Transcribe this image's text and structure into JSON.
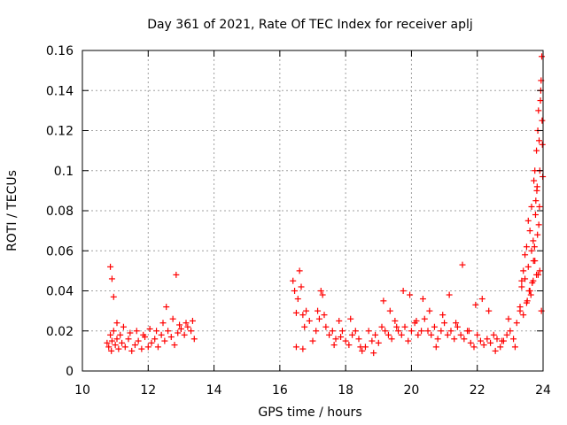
{
  "chart_data": {
    "type": "scatter",
    "title": "Day 361 of 2021, Rate Of TEC Index for receiver aplj",
    "xlabel": "GPS time / hours",
    "ylabel": "ROTI / TECUs",
    "xlim": [
      10,
      24
    ],
    "ylim": [
      0,
      0.16
    ],
    "x_ticks": [
      10,
      12,
      14,
      16,
      18,
      20,
      22,
      24
    ],
    "x_tick_labels": [
      "10",
      "12",
      "14",
      "16",
      "18",
      "20",
      "22",
      "24"
    ],
    "y_ticks": [
      0,
      0.02,
      0.04,
      0.06,
      0.08,
      0.1,
      0.12,
      0.14,
      0.16
    ],
    "y_tick_labels": [
      "0",
      "0.02",
      "0.04",
      "0.06",
      "0.08",
      "0.1",
      "0.12",
      "0.14",
      "0.16"
    ],
    "grid": true,
    "marker": "plus",
    "color": "#ff0000",
    "series": [
      {
        "name": "ROTI",
        "x": [
          10.75,
          10.8,
          10.85,
          10.88,
          10.9,
          10.95,
          11.0,
          11.05,
          11.1,
          11.15,
          11.2,
          11.3,
          11.4,
          11.5,
          11.6,
          11.7,
          11.8,
          11.9,
          12.0,
          12.1,
          12.2,
          12.3,
          12.4,
          12.5,
          12.6,
          12.7,
          12.8,
          12.9,
          13.0,
          13.1,
          13.2,
          13.3,
          13.4,
          10.85,
          10.9,
          10.95,
          11.05,
          11.25,
          11.45,
          11.65,
          11.85,
          12.05,
          12.25,
          12.45,
          12.55,
          12.75,
          12.85,
          12.95,
          13.15,
          13.35,
          16.4,
          16.45,
          16.5,
          16.55,
          16.6,
          16.65,
          16.7,
          16.75,
          16.8,
          16.9,
          17.0,
          17.1,
          17.2,
          17.25,
          17.3,
          17.4,
          17.5,
          17.6,
          17.7,
          17.8,
          17.9,
          18.0,
          18.1,
          18.2,
          18.3,
          18.4,
          18.5,
          18.6,
          18.7,
          18.8,
          18.9,
          19.0,
          19.1,
          19.2,
          19.3,
          19.4,
          19.5,
          19.6,
          19.7,
          19.8,
          19.9,
          20.0,
          20.1,
          20.2,
          20.3,
          20.4,
          20.5,
          20.6,
          20.7,
          20.8,
          20.9,
          21.0,
          21.1,
          21.2,
          21.3,
          21.4,
          21.5,
          21.6,
          21.7,
          21.8,
          21.9,
          22.0,
          22.1,
          22.2,
          22.3,
          22.4,
          22.5,
          22.6,
          22.7,
          22.8,
          22.9,
          23.0,
          23.1,
          23.2,
          23.3,
          23.4,
          23.5,
          23.6,
          23.7,
          23.8,
          23.9,
          16.5,
          16.7,
          17.15,
          17.35,
          17.65,
          17.85,
          18.15,
          18.45,
          18.85,
          19.15,
          19.35,
          19.55,
          19.75,
          19.95,
          20.15,
          20.35,
          20.55,
          20.75,
          20.95,
          21.15,
          21.35,
          21.55,
          21.75,
          21.95,
          22.15,
          22.35,
          22.55,
          22.75,
          22.95,
          23.15,
          23.35,
          23.45,
          23.55,
          23.65,
          23.75,
          23.85,
          23.95,
          23.3,
          23.35,
          23.4,
          23.45,
          23.5,
          23.55,
          23.6,
          23.65,
          23.7,
          23.72,
          23.75,
          23.78,
          23.8,
          23.82,
          23.84,
          23.86,
          23.88,
          23.9,
          23.92,
          23.94,
          23.96,
          23.98,
          23.99,
          23.97,
          23.93,
          23.89,
          23.87,
          23.83,
          23.81,
          23.77,
          23.74,
          23.71,
          23.67,
          23.63,
          23.58,
          23.52
        ],
        "y": [
          0.014,
          0.012,
          0.018,
          0.01,
          0.015,
          0.02,
          0.013,
          0.016,
          0.011,
          0.018,
          0.014,
          0.012,
          0.016,
          0.01,
          0.013,
          0.015,
          0.011,
          0.017,
          0.012,
          0.014,
          0.016,
          0.012,
          0.018,
          0.015,
          0.02,
          0.017,
          0.013,
          0.019,
          0.021,
          0.018,
          0.022,
          0.02,
          0.016,
          0.052,
          0.046,
          0.037,
          0.024,
          0.022,
          0.019,
          0.02,
          0.018,
          0.021,
          0.02,
          0.024,
          0.032,
          0.026,
          0.048,
          0.023,
          0.024,
          0.025,
          0.045,
          0.04,
          0.029,
          0.036,
          0.05,
          0.042,
          0.028,
          0.022,
          0.03,
          0.025,
          0.015,
          0.02,
          0.026,
          0.04,
          0.038,
          0.022,
          0.018,
          0.02,
          0.016,
          0.025,
          0.02,
          0.015,
          0.013,
          0.018,
          0.02,
          0.016,
          0.01,
          0.012,
          0.02,
          0.015,
          0.018,
          0.014,
          0.022,
          0.02,
          0.018,
          0.016,
          0.025,
          0.02,
          0.018,
          0.022,
          0.015,
          0.02,
          0.024,
          0.018,
          0.02,
          0.026,
          0.02,
          0.018,
          0.022,
          0.016,
          0.02,
          0.024,
          0.018,
          0.02,
          0.016,
          0.022,
          0.018,
          0.016,
          0.02,
          0.014,
          0.012,
          0.018,
          0.015,
          0.013,
          0.016,
          0.014,
          0.018,
          0.016,
          0.012,
          0.015,
          0.018,
          0.02,
          0.016,
          0.024,
          0.03,
          0.028,
          0.034,
          0.04,
          0.045,
          0.048,
          0.05,
          0.012,
          0.011,
          0.03,
          0.028,
          0.013,
          0.017,
          0.026,
          0.012,
          0.009,
          0.035,
          0.03,
          0.022,
          0.04,
          0.038,
          0.025,
          0.036,
          0.03,
          0.012,
          0.028,
          0.038,
          0.024,
          0.053,
          0.02,
          0.033,
          0.036,
          0.03,
          0.01,
          0.015,
          0.026,
          0.012,
          0.042,
          0.046,
          0.052,
          0.06,
          0.055,
          0.048,
          0.03,
          0.032,
          0.045,
          0.05,
          0.058,
          0.062,
          0.075,
          0.07,
          0.082,
          0.065,
          0.095,
          0.1,
          0.085,
          0.11,
          0.092,
          0.12,
          0.13,
          0.115,
          0.1,
          0.135,
          0.145,
          0.157,
          0.113,
          0.097,
          0.125,
          0.14,
          0.082,
          0.073,
          0.068,
          0.09,
          0.078,
          0.062,
          0.055,
          0.044,
          0.038,
          0.04,
          0.035
        ]
      }
    ]
  }
}
